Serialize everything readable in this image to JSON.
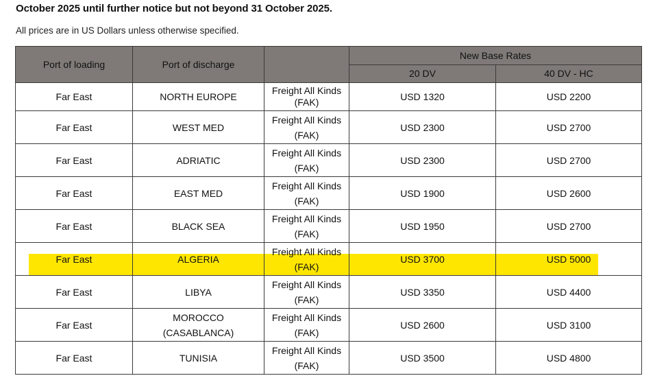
{
  "header": {
    "title": "October 2025 until further notice but not beyond 31 October 2025.",
    "subtitle": "All prices are in US Dollars unless otherwise specified."
  },
  "table": {
    "columns": {
      "port_loading": "Port of loading",
      "port_discharge": "Port of discharge",
      "commodity": "",
      "group": "New Base Rates",
      "rate_20": "20 DV",
      "rate_40": "40 DV - HC"
    },
    "highlight_color": "#ffe600",
    "rows": [
      {
        "loading": "Far East",
        "discharge": "NORTH EUROPE",
        "discharge_2": "",
        "commodity": "Freight All Kinds",
        "commodity_2": "(FAK)",
        "rate_20": "USD 1320",
        "rate_40": "USD 2200",
        "highlighted": false
      },
      {
        "loading": "Far East",
        "discharge": "WEST MED",
        "discharge_2": "",
        "commodity": "Freight All Kinds",
        "commodity_2": "(FAK)",
        "rate_20": "USD 2300",
        "rate_40": "USD 2700",
        "highlighted": false
      },
      {
        "loading": "Far East",
        "discharge": "ADRIATIC",
        "discharge_2": "",
        "commodity": "Freight All Kinds",
        "commodity_2": "(FAK)",
        "rate_20": "USD 2300",
        "rate_40": "USD 2700",
        "highlighted": false
      },
      {
        "loading": "Far East",
        "discharge": "EAST MED",
        "discharge_2": "",
        "commodity": "Freight All Kinds",
        "commodity_2": "(FAK)",
        "rate_20": "USD 1900",
        "rate_40": "USD 2600",
        "highlighted": false
      },
      {
        "loading": "Far East",
        "discharge": "BLACK SEA",
        "discharge_2": "",
        "commodity": "Freight All Kinds",
        "commodity_2": "(FAK)",
        "rate_20": "USD 1950",
        "rate_40": "USD 2700",
        "highlighted": false
      },
      {
        "loading": "Far East",
        "discharge": "ALGERIA",
        "discharge_2": "",
        "commodity": "Freight All Kinds",
        "commodity_2": "(FAK)",
        "rate_20": "USD 3700",
        "rate_40": "USD 5000",
        "highlighted": true
      },
      {
        "loading": "Far East",
        "discharge": "LIBYA",
        "discharge_2": "",
        "commodity": "Freight All Kinds",
        "commodity_2": "(FAK)",
        "rate_20": "USD 3350",
        "rate_40": "USD  4400",
        "highlighted": false
      },
      {
        "loading": "Far East",
        "discharge": "MOROCCO",
        "discharge_2": "(CASABLANCA)",
        "commodity": "Freight All Kinds",
        "commodity_2": "(FAK)",
        "rate_20": "USD 2600",
        "rate_40": "USD 3100",
        "highlighted": false
      },
      {
        "loading": "Far East",
        "discharge": "TUNISIA",
        "discharge_2": "",
        "commodity": "Freight All Kinds",
        "commodity_2": "(FAK)",
        "rate_20": "USD 3500",
        "rate_40": "USD  4800",
        "highlighted": false
      }
    ]
  }
}
